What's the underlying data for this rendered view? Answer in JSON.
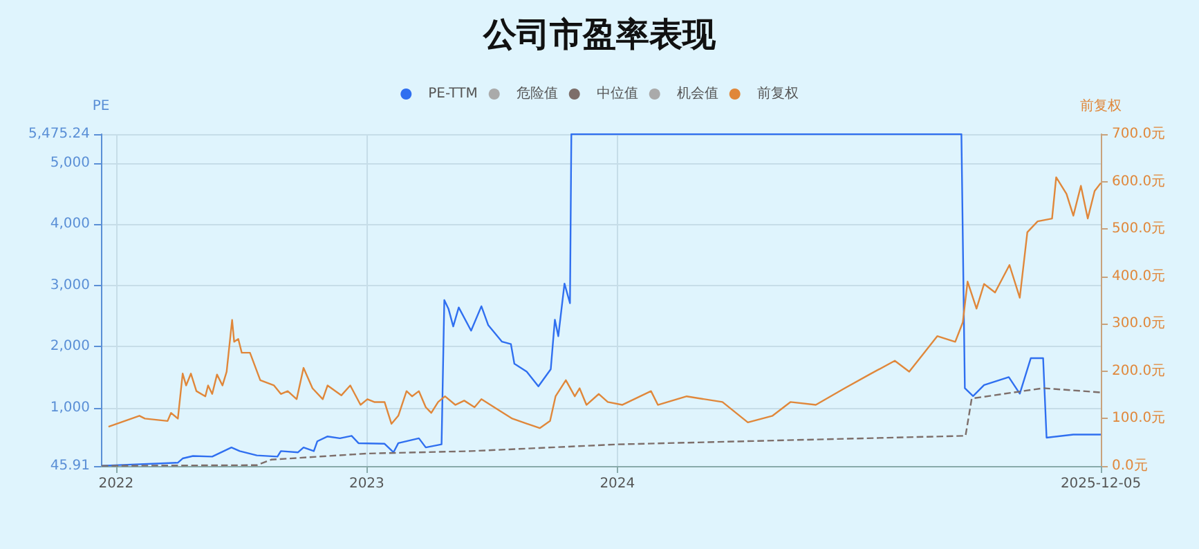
{
  "chart_data": {
    "type": "line",
    "title": "公司市盈率表现",
    "ylabel": "PE",
    "y2label": "前复权",
    "series": [
      {
        "name": "PE-TTM",
        "color": "#2f6ff0",
        "x": [
          "2021-12-11",
          "2022-04-01",
          "2022-04-08",
          "2022-04-23",
          "2022-05-21",
          "2022-06-18",
          "2022-06-30",
          "2022-07-25",
          "2022-08-24",
          "2022-08-29",
          "2022-09-23",
          "2022-10-01",
          "2022-10-16",
          "2022-10-21",
          "2022-11-05",
          "2022-11-23",
          "2022-12-10",
          "2022-12-20",
          "2023-01-27",
          "2023-02-09",
          "2023-02-16",
          "2023-03-18",
          "2023-03-28",
          "2023-04-20",
          "2023-04-24",
          "2023-04-30",
          "2023-05-07",
          "2023-05-15",
          "2023-06-02",
          "2023-06-17",
          "2023-06-27",
          "2023-07-17",
          "2023-07-30",
          "2023-08-04",
          "2023-08-22",
          "2023-09-08",
          "2023-09-26",
          "2023-10-02",
          "2023-10-07",
          "2023-10-16",
          "2023-10-24",
          "2023-10-26",
          "2025-05-16",
          "2025-05-21",
          "2025-06-02",
          "2025-06-18",
          "2025-07-24",
          "2025-08-09",
          "2025-08-25",
          "2025-09-12",
          "2025-09-17",
          "2025-10-26",
          "2025-12-05"
        ],
        "values": [
          50,
          100,
          170,
          210,
          200,
          350,
          290,
          220,
          200,
          290,
          270,
          350,
          290,
          450,
          530,
          500,
          540,
          420,
          410,
          270,
          420,
          500,
          350,
          400,
          2760,
          2620,
          2330,
          2640,
          2260,
          2660,
          2350,
          2080,
          2040,
          1720,
          1590,
          1350,
          1630,
          2440,
          2170,
          3030,
          2710,
          5475.24,
          5475.24,
          1320,
          1190,
          1370,
          1500,
          1230,
          1810,
          1810,
          510,
          560,
          560
        ]
      },
      {
        "name": "危险值",
        "color": "#aaaaaa"
      },
      {
        "name": "中位值",
        "color": "#7d6e6a",
        "line_style": "dashed",
        "x": [
          "2021-12-11",
          "2022-07-25",
          "2022-08-15",
          "2023-01-01",
          "2023-06-02",
          "2024-01-01",
          "2025-05-22",
          "2025-05-31",
          "2025-09-12",
          "2025-12-05"
        ],
        "values": [
          50,
          60,
          150,
          250,
          290,
          400,
          540,
          1150,
          1320,
          1250
        ]
      },
      {
        "name": "机会值",
        "color": "#aaaaaa"
      },
      {
        "name": "前复权",
        "color": "#e0873a",
        "axis": "y2",
        "x": [
          "2021-12-21",
          "2022-02-04",
          "2022-02-12",
          "2022-03-17",
          "2022-03-22",
          "2022-04-01",
          "2022-04-08",
          "2022-04-13",
          "2022-04-20",
          "2022-04-28",
          "2022-05-11",
          "2022-05-15",
          "2022-05-21",
          "2022-05-28",
          "2022-06-05",
          "2022-06-11",
          "2022-06-19",
          "2022-06-22",
          "2022-06-28",
          "2022-07-03",
          "2022-07-15",
          "2022-07-30",
          "2022-08-19",
          "2022-08-29",
          "2022-09-08",
          "2022-09-21",
          "2022-10-01",
          "2022-10-14",
          "2022-10-29",
          "2022-11-05",
          "2022-11-25",
          "2022-12-08",
          "2022-12-23",
          "2023-01-02",
          "2023-01-12",
          "2023-01-27",
          "2023-02-06",
          "2023-02-16",
          "2023-02-28",
          "2023-03-08",
          "2023-03-18",
          "2023-03-28",
          "2023-04-05",
          "2023-04-15",
          "2023-04-25",
          "2023-05-10",
          "2023-05-23",
          "2023-06-07",
          "2023-06-17",
          "2023-07-12",
          "2023-08-01",
          "2023-09-10",
          "2023-09-25",
          "2023-10-03",
          "2023-10-18",
          "2023-10-31",
          "2023-11-07",
          "2023-11-17",
          "2023-12-05",
          "2023-12-18",
          "2024-01-08",
          "2024-02-19",
          "2024-02-29",
          "2024-04-11",
          "2024-06-02",
          "2024-07-09",
          "2024-08-14",
          "2024-09-09",
          "2024-10-16",
          "2024-11-27",
          "2025-01-02",
          "2025-02-08",
          "2025-03-01",
          "2025-04-11",
          "2025-05-07",
          "2025-05-18",
          "2025-05-25",
          "2025-06-07",
          "2025-06-18",
          "2025-07-04",
          "2025-07-25",
          "2025-08-09",
          "2025-08-20",
          "2025-09-04",
          "2025-09-25",
          "2025-10-01",
          "2025-10-16",
          "2025-10-26",
          "2025-11-06",
          "2025-11-16",
          "2025-11-26",
          "2025-12-05"
        ],
        "values": [
          83,
          106,
          100,
          95,
          112,
          100,
          195,
          170,
          195,
          158,
          147,
          170,
          152,
          193,
          170,
          199,
          308,
          262,
          268,
          239,
          239,
          181,
          170,
          152,
          158,
          141,
          207,
          164,
          141,
          170,
          149,
          170,
          129,
          141,
          135,
          135,
          89,
          106,
          158,
          147,
          158,
          124,
          112,
          135,
          147,
          129,
          138,
          124,
          141,
          118,
          100,
          80,
          95,
          147,
          181,
          147,
          164,
          129,
          152,
          135,
          129,
          158,
          129,
          147,
          135,
          92,
          106,
          135,
          129,
          164,
          193,
          222,
          199,
          274,
          262,
          303,
          389,
          332,
          384,
          366,
          424,
          355,
          493,
          516,
          522,
          609,
          574,
          528,
          591,
          522,
          580,
          597
        ]
      }
    ],
    "xlim": [
      "2021-12-10",
      "2025-12-05"
    ],
    "xticks": [
      "2022",
      "2023",
      "2024",
      "2025-12-05"
    ],
    "ylim": [
      45.91,
      5475.24
    ],
    "yticks": [
      {
        "value": 45.91,
        "label": "45.91"
      },
      {
        "value": 1000,
        "label": "1,000"
      },
      {
        "value": 2000,
        "label": "2,000"
      },
      {
        "value": 3000,
        "label": "3,000"
      },
      {
        "value": 4000,
        "label": "4,000"
      },
      {
        "value": 5000,
        "label": "5,000"
      },
      {
        "value": 5475.24,
        "label": "5,475.24"
      }
    ],
    "y2lim": [
      0,
      700
    ],
    "y2ticks": [
      {
        "value": 0,
        "label": "0.0元"
      },
      {
        "value": 100,
        "label": "100.0元"
      },
      {
        "value": 200,
        "label": "200.0元"
      },
      {
        "value": 300,
        "label": "300.0元"
      },
      {
        "value": 400,
        "label": "400.0元"
      },
      {
        "value": 500,
        "label": "500.0元"
      },
      {
        "value": 600,
        "label": "600.0元"
      },
      {
        "value": 700,
        "label": "700.0元"
      }
    ],
    "grid": true,
    "legend": "top"
  }
}
